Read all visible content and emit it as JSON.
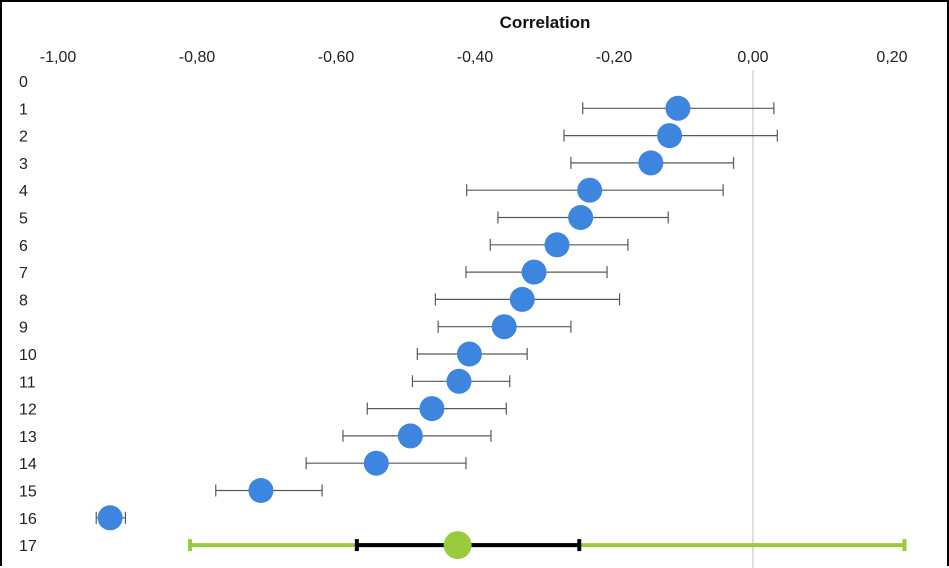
{
  "chart_data": {
    "type": "scatter",
    "title": "Correlation",
    "xlabel": "",
    "ylabel": "",
    "xlim": [
      -1.0,
      0.25
    ],
    "x_ticks": [
      "-1,00",
      "-0,80",
      "-0,60",
      "-0,40",
      "-0,20",
      "0,00",
      "0,20"
    ],
    "x_tick_values": [
      -1.0,
      -0.8,
      -0.6,
      -0.4,
      -0.2,
      0.0,
      0.2
    ],
    "y_categories": [
      "0",
      "1",
      "2",
      "3",
      "4",
      "5",
      "6",
      "7",
      "8",
      "9",
      "10",
      "11",
      "12",
      "13",
      "14",
      "15",
      "16",
      "17"
    ],
    "grid": false,
    "zero_line": true,
    "points": [
      {
        "row": 1,
        "x": -0.108,
        "ci": [
          -0.245,
          0.03
        ]
      },
      {
        "row": 2,
        "x": -0.12,
        "ci": [
          -0.272,
          0.035
        ]
      },
      {
        "row": 3,
        "x": -0.147,
        "ci": [
          -0.262,
          -0.028
        ]
      },
      {
        "row": 4,
        "x": -0.235,
        "ci": [
          -0.412,
          -0.043
        ]
      },
      {
        "row": 5,
        "x": -0.248,
        "ci": [
          -0.367,
          -0.122
        ]
      },
      {
        "row": 6,
        "x": -0.282,
        "ci": [
          -0.378,
          -0.18
        ]
      },
      {
        "row": 7,
        "x": -0.315,
        "ci": [
          -0.413,
          -0.21
        ]
      },
      {
        "row": 8,
        "x": -0.332,
        "ci": [
          -0.457,
          -0.192
        ]
      },
      {
        "row": 9,
        "x": -0.358,
        "ci": [
          -0.453,
          -0.262
        ]
      },
      {
        "row": 10,
        "x": -0.408,
        "ci": [
          -0.483,
          -0.325
        ]
      },
      {
        "row": 11,
        "x": -0.423,
        "ci": [
          -0.49,
          -0.35
        ]
      },
      {
        "row": 12,
        "x": -0.462,
        "ci": [
          -0.555,
          -0.355
        ]
      },
      {
        "row": 13,
        "x": -0.493,
        "ci": [
          -0.59,
          -0.377
        ]
      },
      {
        "row": 14,
        "x": -0.542,
        "ci": [
          -0.643,
          -0.413
        ]
      },
      {
        "row": 15,
        "x": -0.708,
        "ci": [
          -0.773,
          -0.62
        ]
      },
      {
        "row": 16,
        "x": -0.925,
        "ci": [
          -0.945,
          -0.903
        ]
      }
    ],
    "summary": {
      "row": 17,
      "x": -0.425,
      "ci": [
        -0.57,
        -0.25
      ],
      "prediction_interval": [
        -0.81,
        0.218
      ]
    },
    "colors": {
      "study_marker": "#3d85de",
      "study_errorbar": "#595959",
      "summary_marker": "#9acb3c",
      "summary_ci": "#000000",
      "prediction_interval": "#9acb3c",
      "zero_line": "#bfbfbf"
    }
  }
}
